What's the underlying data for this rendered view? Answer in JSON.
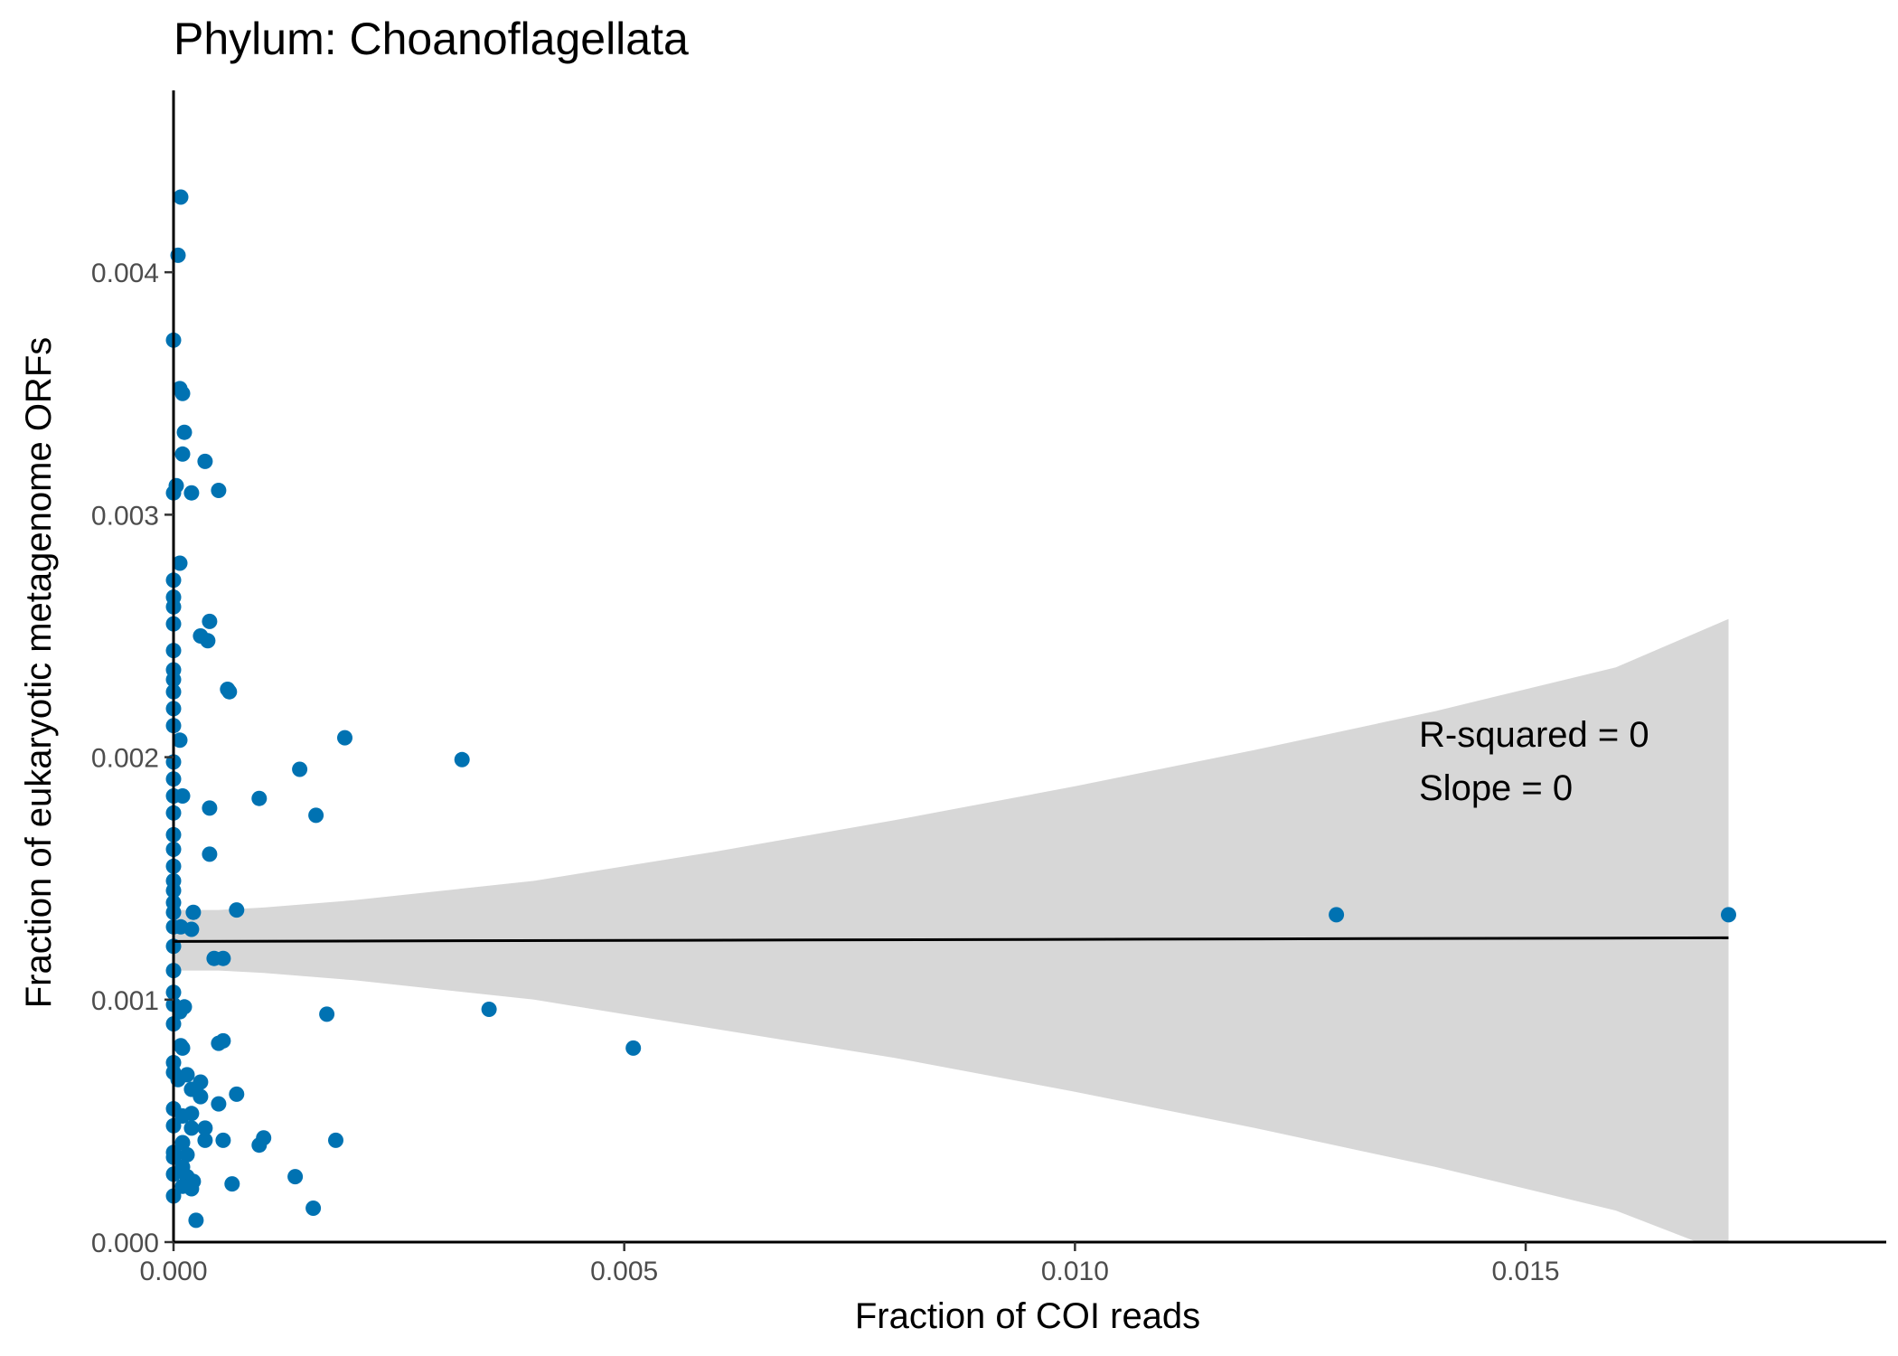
{
  "chart_data": {
    "type": "scatter",
    "title": "Phylum:  Choanoflagellata",
    "xlabel": "Fraction of COI reads",
    "ylabel": "Fraction of eukaryotic metagenome ORFs",
    "xlim": [
      0,
      0.019
    ],
    "ylim": [
      0,
      0.00475
    ],
    "x_ticks": [
      0,
      0.005,
      0.01,
      0.015
    ],
    "x_tick_labels": [
      "0.000",
      "0.005",
      "0.010",
      "0.015"
    ],
    "y_ticks": [
      0,
      0.001,
      0.002,
      0.003,
      0.004
    ],
    "y_tick_labels": [
      "0.000",
      "0.001",
      "0.002",
      "0.003",
      "0.004"
    ],
    "grid": false,
    "legend": "none",
    "point_color": "#0072b2",
    "line_color": "#000000",
    "band_color": "#bfbfbf",
    "annotations": [
      "R-squared =  0",
      "Slope =  0"
    ],
    "regression": {
      "x": [
        0,
        0.01725
      ],
      "y": [
        0.00124,
        0.001255
      ]
    },
    "confidence_band": {
      "x": [
        0,
        0.0005,
        0.001,
        0.002,
        0.004,
        0.006,
        0.008,
        0.01,
        0.012,
        0.014,
        0.016,
        0.01725
      ],
      "upper": [
        0.00137,
        0.00137,
        0.00138,
        0.00141,
        0.00149,
        0.00161,
        0.00174,
        0.00188,
        0.00203,
        0.00219,
        0.00237,
        0.00257
      ],
      "lower": [
        0.00112,
        0.00112,
        0.00111,
        0.00108,
        0.001,
        0.00088,
        0.00076,
        0.00062,
        0.00047,
        0.00031,
        0.00013,
        -5e-05
      ]
    },
    "series": [
      {
        "points": [
          [
            8e-05,
            0.00431
          ],
          [
            5e-05,
            0.00407
          ],
          [
            0.0,
            0.00372
          ],
          [
            7e-05,
            0.00352
          ],
          [
            0.0001,
            0.0035
          ],
          [
            0.00012,
            0.00334
          ],
          [
            0.0001,
            0.00325
          ],
          [
            0.00035,
            0.00322
          ],
          [
            3e-05,
            0.00312
          ],
          [
            0.0,
            0.00309
          ],
          [
            0.0002,
            0.00309
          ],
          [
            0.0005,
            0.0031
          ],
          [
            7e-05,
            0.0028
          ],
          [
            0.0,
            0.00273
          ],
          [
            0.0,
            0.00266
          ],
          [
            0.0,
            0.00262
          ],
          [
            0.0,
            0.00255
          ],
          [
            0.0004,
            0.00256
          ],
          [
            0.0003,
            0.0025
          ],
          [
            0.00038,
            0.00248
          ],
          [
            0.0,
            0.00244
          ],
          [
            0.0,
            0.00236
          ],
          [
            0.0,
            0.00232
          ],
          [
            0.0,
            0.00227
          ],
          [
            0.0006,
            0.00228
          ],
          [
            0.00062,
            0.00227
          ],
          [
            0.0,
            0.0022
          ],
          [
            0.0,
            0.00213
          ],
          [
            7e-05,
            0.00207
          ],
          [
            0.0019,
            0.00208
          ],
          [
            0.0,
            0.00198
          ],
          [
            0.0032,
            0.00199
          ],
          [
            0.0014,
            0.00195
          ],
          [
            0.0,
            0.00191
          ],
          [
            0.0,
            0.00184
          ],
          [
            0.0001,
            0.00184
          ],
          [
            0.00095,
            0.00183
          ],
          [
            0.0004,
            0.00179
          ],
          [
            0.0,
            0.00177
          ],
          [
            0.00158,
            0.00176
          ],
          [
            0.0,
            0.00168
          ],
          [
            0.0,
            0.00162
          ],
          [
            0.0004,
            0.0016
          ],
          [
            0.0,
            0.00155
          ],
          [
            0.0,
            0.00149
          ],
          [
            0.0,
            0.00145
          ],
          [
            0.0,
            0.0014
          ],
          [
            0.0,
            0.00136
          ],
          [
            0.00022,
            0.00136
          ],
          [
            0.0007,
            0.00137
          ],
          [
            0.0129,
            0.00135
          ],
          [
            0.01725,
            0.00135
          ],
          [
            0.0,
            0.0013
          ],
          [
            8e-05,
            0.0013
          ],
          [
            0.0002,
            0.00129
          ],
          [
            0.0,
            0.00122
          ],
          [
            0.00045,
            0.00117
          ],
          [
            0.00055,
            0.00117
          ],
          [
            0.0,
            0.00112
          ],
          [
            0.0,
            0.00103
          ],
          [
            0.0,
            0.00098
          ],
          [
            0.00012,
            0.00097
          ],
          [
            7e-05,
            0.00095
          ],
          [
            0.0,
            0.0009
          ],
          [
            0.0017,
            0.00094
          ],
          [
            0.0035,
            0.00096
          ],
          [
            8e-05,
            0.00081
          ],
          [
            0.0001,
            0.0008
          ],
          [
            0.0005,
            0.00082
          ],
          [
            0.00055,
            0.00083
          ],
          [
            0.0051,
            0.0008
          ],
          [
            0.0,
            0.00074
          ],
          [
            0.0,
            0.0007
          ],
          [
            5e-05,
            0.00067
          ],
          [
            0.00015,
            0.00069
          ],
          [
            0.0003,
            0.00066
          ],
          [
            0.0002,
            0.00063
          ],
          [
            0.0007,
            0.00061
          ],
          [
            0.0003,
            0.0006
          ],
          [
            0.0005,
            0.00057
          ],
          [
            0.0,
            0.00055
          ],
          [
            0.0002,
            0.00053
          ],
          [
            0.0001,
            0.00052
          ],
          [
            0.0,
            0.00048
          ],
          [
            0.0002,
            0.00047
          ],
          [
            0.00035,
            0.00047
          ],
          [
            0.001,
            0.00043
          ],
          [
            0.00055,
            0.00042
          ],
          [
            0.00035,
            0.00042
          ],
          [
            0.0001,
            0.00041
          ],
          [
            0.00095,
            0.0004
          ],
          [
            0.0018,
            0.00042
          ],
          [
            0.0,
            0.00037
          ],
          [
            0.00015,
            0.00036
          ],
          [
            0.0,
            0.00035
          ],
          [
            0.0001,
            0.00031
          ],
          [
            0.0,
            0.00028
          ],
          [
            0.00015,
            0.00027
          ],
          [
            0.00135,
            0.00027
          ],
          [
            0.00022,
            0.00025
          ],
          [
            0.0001,
            0.00023
          ],
          [
            0.0002,
            0.00022
          ],
          [
            0.00065,
            0.00024
          ],
          [
            0.0,
            0.00019
          ],
          [
            0.00155,
            0.00014
          ],
          [
            0.00025,
            9e-05
          ]
        ]
      }
    ]
  }
}
